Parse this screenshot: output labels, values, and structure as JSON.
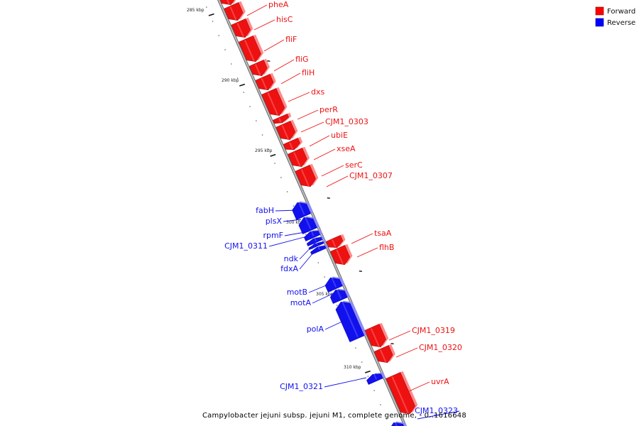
{
  "legend": [
    {
      "label": "Forward",
      "color": "#ff0000"
    },
    {
      "label": "Reverse",
      "color": "#0000ff"
    }
  ],
  "caption": "Campylobacter jejuni subsp. jejuni M1, complete genome, - 0..1616648",
  "colors": {
    "forward": "#ee1111",
    "reverse": "#1111ee",
    "axis": "#999999"
  },
  "ticks": [
    "285 kbp",
    "290 kbp",
    "295 kbp",
    "300 kbp",
    "305 kbp",
    "310 kbp"
  ],
  "genes": [
    {
      "name": "pheA",
      "strand": "forward"
    },
    {
      "name": "hisC",
      "strand": "forward"
    },
    {
      "name": "fliF",
      "strand": "forward"
    },
    {
      "name": "fliG",
      "strand": "forward"
    },
    {
      "name": "fliH",
      "strand": "forward"
    },
    {
      "name": "dxs",
      "strand": "forward"
    },
    {
      "name": "perR",
      "strand": "forward"
    },
    {
      "name": "CJM1_0303",
      "strand": "forward"
    },
    {
      "name": "ubiE",
      "strand": "forward"
    },
    {
      "name": "xseA",
      "strand": "forward"
    },
    {
      "name": "serC",
      "strand": "forward"
    },
    {
      "name": "CJM1_0307",
      "strand": "forward"
    },
    {
      "name": "fabH",
      "strand": "reverse"
    },
    {
      "name": "plsX",
      "strand": "reverse"
    },
    {
      "name": "rpmF",
      "strand": "reverse"
    },
    {
      "name": "CJM1_0311",
      "strand": "reverse"
    },
    {
      "name": "ndk",
      "strand": "reverse"
    },
    {
      "name": "fdxA",
      "strand": "reverse"
    },
    {
      "name": "tsaA",
      "strand": "forward"
    },
    {
      "name": "flhB",
      "strand": "forward"
    },
    {
      "name": "motB",
      "strand": "reverse"
    },
    {
      "name": "motA",
      "strand": "reverse"
    },
    {
      "name": "polA",
      "strand": "reverse"
    },
    {
      "name": "CJM1_0319",
      "strand": "forward"
    },
    {
      "name": "CJM1_0320",
      "strand": "forward"
    },
    {
      "name": "CJM1_0321",
      "strand": "reverse"
    },
    {
      "name": "uvrA",
      "strand": "forward"
    },
    {
      "name": "CJM1_0323",
      "strand": "reverse"
    }
  ]
}
